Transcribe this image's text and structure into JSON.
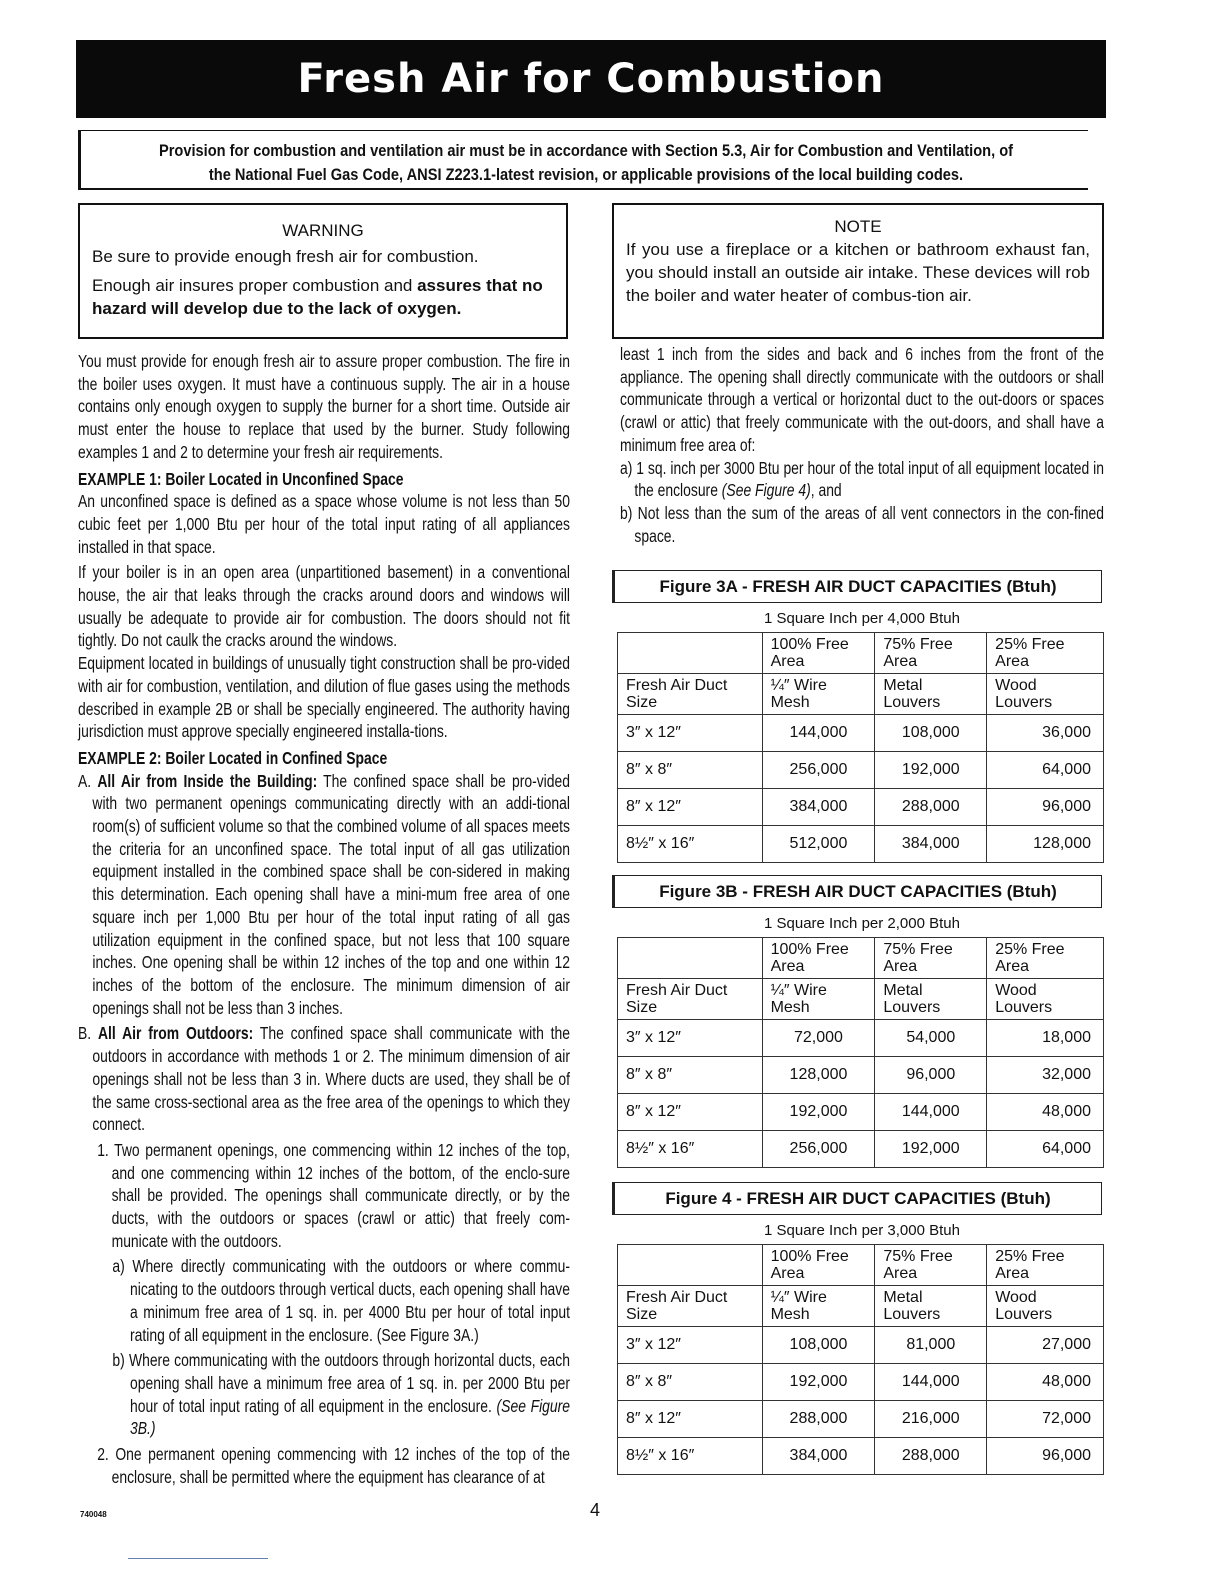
{
  "title": "Fresh Air for Combustion",
  "provision": [
    "Provision for combustion and ventilation air must be in accordance with Section 5.3, Air for Combustion and Ventilation, of",
    "the National Fuel Gas Code, ANSI Z223.1-latest revision, or applicable provisions of the local building codes."
  ],
  "warning": {
    "title": "WARNING",
    "line1": "Be sure to provide enough fresh air for combustion.",
    "line2_plain": "Enough air insures proper combustion and ",
    "line2_bold": "assures that no hazard will develop due to the lack of oxygen."
  },
  "note": {
    "title": "NOTE",
    "text": "If you use a fireplace or a kitchen or bathroom exhaust fan, you should install an outside air intake. These devices will rob the boiler and water heater of combus-tion air."
  },
  "left_column": {
    "intro": "You must provide for enough fresh air to assure proper combustion. The fire in the boiler uses oxygen. It must have a continuous supply. The air in a house contains only enough oxygen to supply the burner for a short time. Outside air must enter the house to replace that used by the burner. Study following examples 1 and 2 to determine your fresh air requirements.",
    "ex1_heading": "EXAMPLE 1: Boiler Located in Unconfined Space",
    "ex1_p1": "An unconfined space is defined as a space whose volume is not less than 50 cubic feet per 1,000 Btu per hour of the total input rating of all appliances installed in that space.",
    "ex1_p2": "If your boiler is in an open area (unpartitioned basement) in a conventional house, the air that leaks through the cracks around doors and windows will usually be adequate to provide air for combustion. The doors should not fit tightly. Do not caulk the cracks around the windows.",
    "ex1_p3": "Equipment located in buildings of unusually tight construction shall be pro-vided with air for combustion, ventilation, and dilution of flue gases using the methods described in example 2B or shall be specially engineered. The authority having jurisdiction must approve specially engineered installa-tions.",
    "ex2_heading": "EXAMPLE 2: Boiler Located in Confined Space",
    "a_label": "A. ",
    "a_bold": "All Air from Inside the Building:",
    "a_text": " The confined space shall be pro-vided with two permanent openings communicating directly with an addi-tional room(s) of sufficient volume so that the combined volume of all spaces meets the criteria for an unconfined space. The total input of all gas utilization equipment installed in the combined space shall be con-sidered in making this determination. Each opening shall have a mini-mum free area of one square inch per 1,000 Btu per hour of the total input rating of all gas utilization equipment in the confined space, but not less that 100 square inches. One opening shall be within 12 inches of the top and one within 12 inches of the bottom of the enclosure. The minimum dimension of air openings shall not be less than 3 inches.",
    "b_label": "B. ",
    "b_bold": "All Air from Outdoors:",
    "b_text": " The confined space shall communicate with the outdoors in accordance with methods 1 or 2. The minimum dimension of air openings shall not be less than 3 in. Where ducts are used, they shall be of the same cross-sectional area as the free area of the openings to which they connect.",
    "item1": "1. Two permanent openings, one commencing within 12 inches of the top, and one commencing within 12 inches of the bottom, of the enclo-sure shall be provided. The openings shall communicate directly, or by the ducts, with the outdoors or spaces (crawl or attic) that freely com-municate with the outdoors.",
    "item1a": "a) Where directly communicating with the outdoors or where commu-nicating to the outdoors through vertical ducts, each opening shall have a minimum free area of 1 sq. in. per 4000 Btu per hour of total input rating of all equipment in the enclosure. (See Figure 3A.)",
    "item1b": "b) Where communicating with the outdoors through horizontal ducts, each opening shall have a minimum free area of 1 sq. in. per 2000 Btu per hour of total input rating of all equipment in the enclosure. ",
    "item1b_italic": "(See Figure 3B.)",
    "item2": "2. One permanent opening commencing with 12 inches of the top of the enclosure, shall be permitted where the equipment has clearance of at"
  },
  "right_column": {
    "cont": "least 1 inch from the sides and back and 6 inches from the front of the appliance. The opening shall directly communicate with the outdoors or shall communicate through a vertical or horizontal duct to the out-doors or spaces (crawl or attic) that freely communicate with the out-doors, and shall have a minimum free area of:",
    "a_text": "a) 1 sq. inch per 3000 Btu per hour of the total input of all equipment located in the enclosure ",
    "a_italic": "(See Figure 4)",
    "a_end": ", and",
    "b_text": "b) Not less than the sum of the areas of all vent connectors in the con-fined space."
  },
  "headers": {
    "h1": [
      "",
      "100% Free Area",
      "75% Free Area",
      "25% Free Area"
    ],
    "h2": [
      "Fresh Air Duct Size",
      "¼″ Wire Mesh",
      "Metal Louvers",
      "Wood Louvers"
    ]
  },
  "figures": [
    {
      "title": "Figure 3A - FRESH AIR DUCT CAPACITIES (Btuh)",
      "subtitle": "1 Square Inch per 4,000 Btuh",
      "rows": [
        [
          "3″ x 12″",
          "144,000",
          "108,000",
          "36,000"
        ],
        [
          "8″ x 8″",
          "256,000",
          "192,000",
          "64,000"
        ],
        [
          "8″ x 12″",
          "384,000",
          "288,000",
          "96,000"
        ],
        [
          "8½″ x 16″",
          "512,000",
          "384,000",
          "128,000"
        ]
      ]
    },
    {
      "title": "Figure 3B - FRESH AIR DUCT CAPACITIES (Btuh)",
      "subtitle": "1 Square Inch per 2,000 Btuh",
      "rows": [
        [
          "3″ x 12″",
          "72,000",
          "54,000",
          "18,000"
        ],
        [
          "8″ x 8″",
          "128,000",
          "96,000",
          "32,000"
        ],
        [
          "8″ x 12″",
          "192,000",
          "144,000",
          "48,000"
        ],
        [
          "8½″ x 16″",
          "256,000",
          "192,000",
          "64,000"
        ]
      ]
    },
    {
      "title": "Figure 4 - FRESH AIR DUCT CAPACITIES (Btuh)",
      "subtitle": "1 Square Inch per 3,000 Btuh",
      "rows": [
        [
          "3″ x 12″",
          "108,000",
          "81,000",
          "27,000"
        ],
        [
          "8″ x 8″",
          "192,000",
          "144,000",
          "48,000"
        ],
        [
          "8″ x 12″",
          "288,000",
          "216,000",
          "72,000"
        ],
        [
          "8½″ x 16″",
          "384,000",
          "288,000",
          "96,000"
        ]
      ]
    }
  ],
  "footer": {
    "page_number": "4",
    "doc_code": "740048"
  }
}
